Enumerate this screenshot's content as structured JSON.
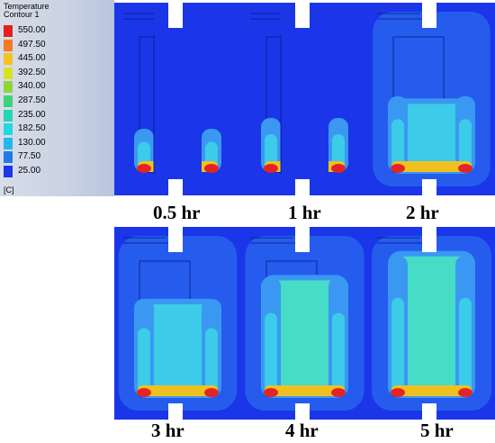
{
  "legend": {
    "title_line1": "Temperature",
    "title_line2": "Contour 1",
    "unit": "[C]",
    "levels": [
      {
        "value": "550.00",
        "color": "#e4201c"
      },
      {
        "value": "497.50",
        "color": "#f57a20"
      },
      {
        "value": "445.00",
        "color": "#f5c21f"
      },
      {
        "value": "392.50",
        "color": "#d7e322"
      },
      {
        "value": "340.00",
        "color": "#8fd63a"
      },
      {
        "value": "287.50",
        "color": "#3ed27a"
      },
      {
        "value": "235.00",
        "color": "#26d4b2"
      },
      {
        "value": "182.50",
        "color": "#22d6e2"
      },
      {
        "value": "130.00",
        "color": "#27b6ec"
      },
      {
        "value": "77.50",
        "color": "#1f7be6"
      },
      {
        "value": "25.00",
        "color": "#1a36e8"
      }
    ]
  },
  "colors": {
    "background": "#1a36e8",
    "ambient": "#2a6af0",
    "bulk_low": "#3a98f2",
    "bulk_mid": "#3ccbe8",
    "bulk_high": "#46dcc6",
    "hot_edge": "#f0c020",
    "hot_core": "#e42424"
  },
  "panels": [
    {
      "caption": "0.5 hr",
      "hour": 0.5
    },
    {
      "caption": "1 hr",
      "hour": 1
    },
    {
      "caption": "2 hr",
      "hour": 2
    },
    {
      "caption": "3 hr",
      "hour": 3
    },
    {
      "caption": "4 hr",
      "hour": 4
    },
    {
      "caption": "5 hr",
      "hour": 5
    }
  ]
}
